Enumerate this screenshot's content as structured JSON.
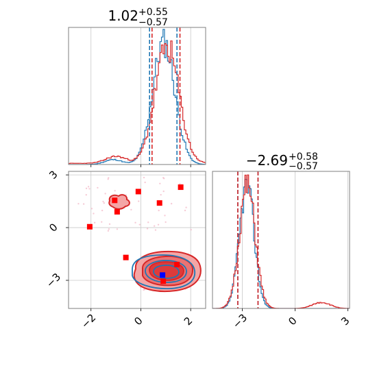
{
  "chart_data": [
    {
      "type": "histogram",
      "panel": "marginal-param-1",
      "title": {
        "value": "1.02",
        "plus": "+0.55",
        "minus": "−0.57"
      },
      "xlim": [
        -2.9,
        2.6
      ],
      "x_ticks": [
        -2,
        0,
        2
      ],
      "grid": true,
      "series": [
        {
          "color": "#1f77b4",
          "quantiles": [
            0.35,
            1.45
          ]
        },
        {
          "color": "#d62728",
          "quantiles": [
            0.45,
            1.57
          ]
        }
      ]
    },
    {
      "type": "histogram",
      "panel": "marginal-param-2",
      "title": {
        "value": "−2.69",
        "plus": "+0.58",
        "minus": "−0.57"
      },
      "xlim": [
        -4.7,
        3.1
      ],
      "x_ticks": [
        -3,
        0,
        3
      ],
      "x_tick_labels": [
        "−3",
        "0",
        "3"
      ],
      "grid": true,
      "series": [
        {
          "color": "#1f77b4",
          "quantiles": [
            -3.26,
            -2.11
          ]
        },
        {
          "color": "#d62728",
          "quantiles": [
            -3.26,
            -2.11
          ]
        }
      ]
    },
    {
      "type": "scatter",
      "panel": "joint-2d",
      "xlim": [
        -2.9,
        2.6
      ],
      "ylim": [
        -4.6,
        3.2
      ],
      "x_ticks": [
        -2,
        0,
        2
      ],
      "x_tick_labels": [
        "−2",
        "0",
        "2"
      ],
      "y_ticks": [
        -3,
        0,
        3
      ],
      "y_tick_labels": [
        "−3",
        "0",
        "3"
      ],
      "grid": true,
      "series": [
        {
          "marker": "square",
          "color": "#ff0000",
          "points": [
            [
              -2.05,
              0.05
            ],
            [
              -1.05,
              1.55
            ],
            [
              -0.95,
              0.9
            ],
            [
              -0.1,
              2.05
            ],
            [
              0.75,
              1.4
            ],
            [
              1.6,
              2.3
            ],
            [
              -0.6,
              -1.7
            ],
            [
              1.45,
              -2.1
            ],
            [
              0.9,
              -3.05
            ]
          ]
        },
        {
          "marker": "square",
          "color": "#0000ff",
          "points": [
            [
              0.87,
              -2.7
            ]
          ]
        }
      ]
    }
  ]
}
